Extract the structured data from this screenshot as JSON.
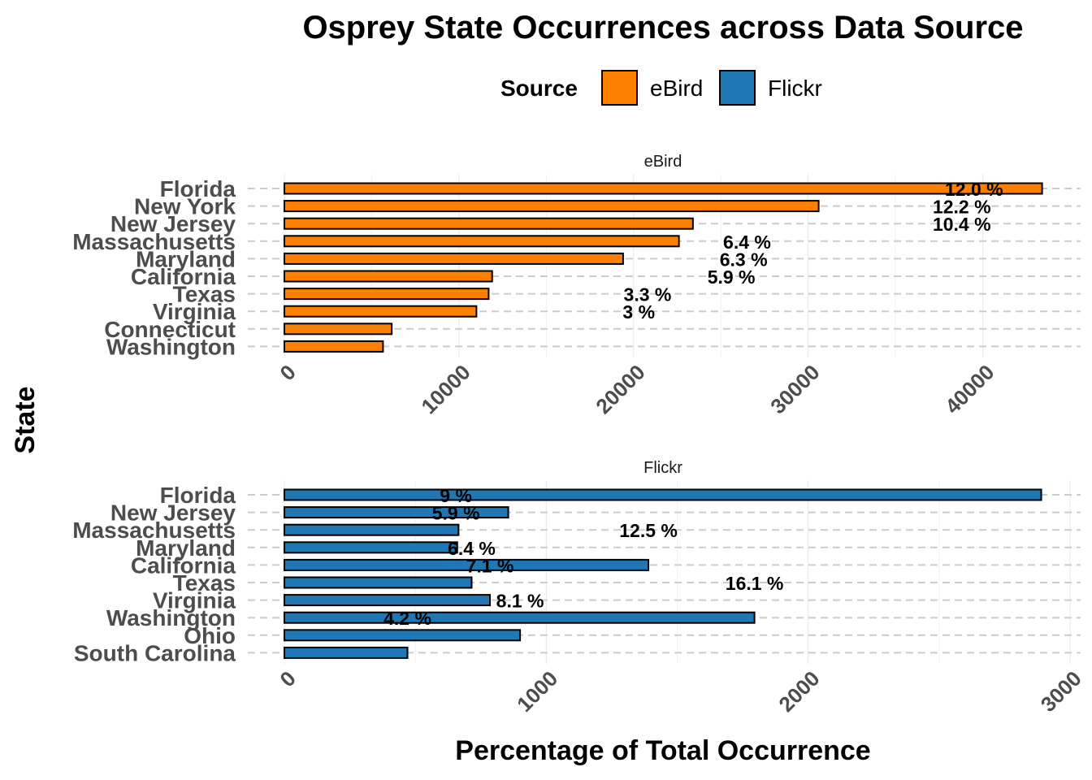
{
  "title": "Osprey State Occurrences across Data Source",
  "legend": {
    "title": "Source",
    "position": "top",
    "items": [
      {
        "label": "eBird",
        "color": "#ff7f00"
      },
      {
        "label": "Flickr",
        "color": "#1f78b4"
      }
    ]
  },
  "axes": {
    "xlabel": "Percentage of Total Occurrence",
    "ylabel": "State"
  },
  "chart_data": [
    {
      "type": "bar",
      "orientation": "horizontal",
      "facet": "eBird",
      "color": "#ff7f00",
      "xlim": [
        0,
        45000
      ],
      "xticks": [
        0,
        10000,
        20000,
        30000,
        40000
      ],
      "xtick_labels": [
        "0",
        "10000",
        "20000",
        "30000",
        "40000"
      ],
      "grid": true,
      "categories": [
        "Florida",
        "New York",
        "New Jersey",
        "Massachusetts",
        "Maryland",
        "California",
        "Texas",
        "Virginia",
        "Connecticut",
        "Washington"
      ],
      "values": [
        43400,
        30600,
        23400,
        22600,
        19400,
        11900,
        11700,
        11000,
        6150,
        5650
      ],
      "labels": [
        "12.0 %",
        "12.2 %",
        "10.4 %",
        "6.4 %",
        "6.3 %",
        "5.9 %",
        "3.3 %",
        "3 %",
        "",
        ""
      ],
      "label_x": [
        39500,
        38800,
        38800,
        26500,
        26300,
        25600,
        20800,
        20300,
        0,
        0
      ]
    },
    {
      "type": "bar",
      "orientation": "horizontal",
      "facet": "Flickr",
      "color": "#1f78b4",
      "xlim": [
        0,
        3000
      ],
      "xticks": [
        0,
        1000,
        2000,
        3000
      ],
      "xtick_labels": [
        "0",
        "1000",
        "2000",
        "3000"
      ],
      "grid": true,
      "categories": [
        "Florida",
        "New Jersey",
        "Massachusetts",
        "Maryland",
        "California",
        "Texas",
        "Virginia",
        "Washington",
        "Ohio",
        "South Carolina"
      ],
      "values": [
        2890,
        855,
        665,
        660,
        1390,
        715,
        785,
        1795,
        900,
        470
      ],
      "labels": [
        "9 %",
        "5.9 %",
        "12.5 %",
        "6.4 %",
        "7.1 %",
        "16.1 %",
        "8.1 %",
        "4.2 %",
        "",
        ""
      ],
      "label_x": [
        655,
        655,
        1390,
        715,
        785,
        1795,
        900,
        470,
        0,
        0
      ]
    }
  ]
}
